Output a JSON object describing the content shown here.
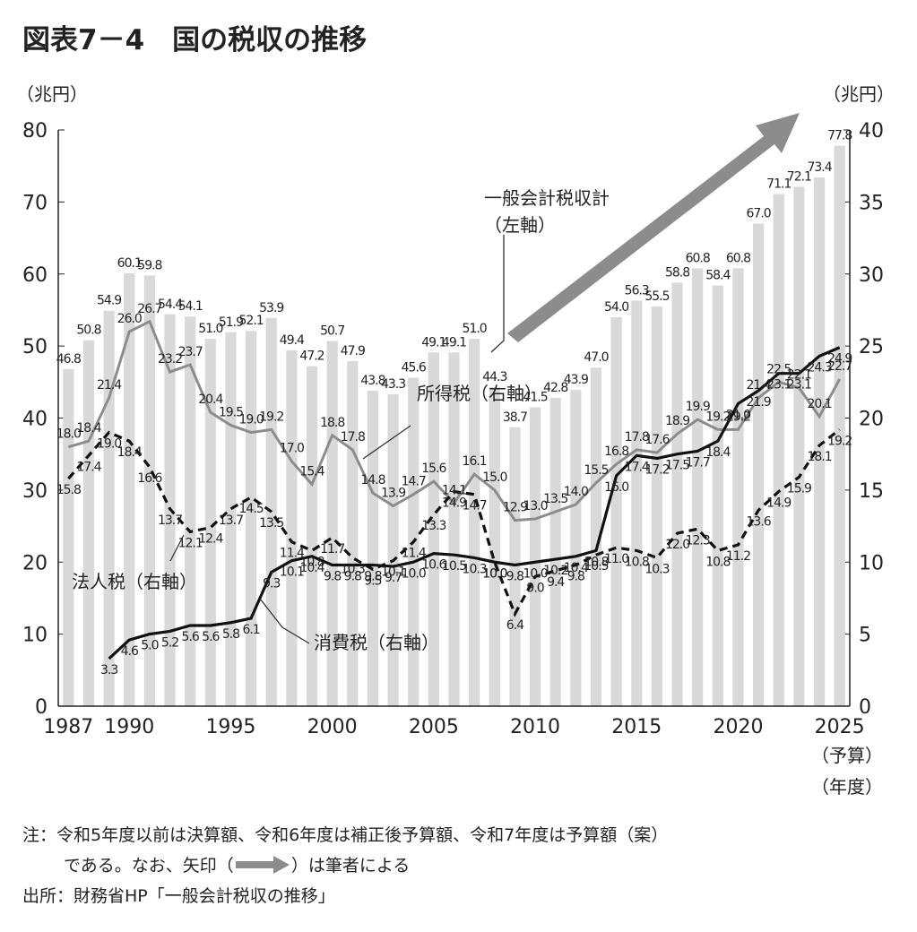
{
  "chart_data": {
    "type": "bar-line",
    "title": "図表7－4　国の税収の推移",
    "y_unit": "（兆円）",
    "y2_unit": "（兆円）",
    "xlabel": "（年度）",
    "x_note": "（予算）",
    "axis_note": "（左軸）",
    "x": [
      1987,
      1988,
      1989,
      1990,
      1991,
      1992,
      1993,
      1994,
      1995,
      1996,
      1997,
      1998,
      1999,
      2000,
      2001,
      2002,
      2003,
      2004,
      2005,
      2006,
      2007,
      2008,
      2009,
      2010,
      2011,
      2012,
      2013,
      2014,
      2015,
      2016,
      2017,
      2018,
      2019,
      2020,
      2021,
      2022,
      2023,
      2024,
      2025
    ],
    "xlim": [
      1986.5,
      2025.5
    ],
    "xticks": [
      1987,
      1990,
      1995,
      2000,
      2005,
      2010,
      2015,
      2020,
      2025
    ],
    "ylim": [
      0,
      80
    ],
    "yticks": [
      0,
      10,
      20,
      30,
      40,
      50,
      60,
      70,
      80
    ],
    "y2lim": [
      0,
      40
    ],
    "y2ticks": [
      0,
      5,
      10,
      15,
      20,
      25,
      30,
      35,
      40
    ],
    "series": [
      {
        "name": "一般会計税収計",
        "kind": "bar",
        "color": "#d9d9d9",
        "values": [
          46.8,
          50.8,
          54.9,
          60.1,
          59.8,
          54.4,
          54.1,
          51.0,
          51.9,
          52.1,
          53.9,
          49.4,
          47.2,
          50.7,
          47.9,
          43.8,
          43.3,
          45.6,
          49.1,
          49.1,
          51.0,
          44.3,
          38.7,
          41.5,
          42.8,
          43.9,
          47.0,
          54.0,
          56.3,
          55.5,
          58.8,
          60.8,
          58.4,
          60.8,
          67.0,
          71.1,
          72.1,
          73.4,
          77.8
        ],
        "value_labels": [
          "46.8",
          "50.8",
          "54.9",
          "60.1",
          "59.8",
          "54.4",
          "54.1",
          "51.0",
          "51.9",
          "52.1",
          "53.9",
          "49.4",
          "47.2",
          "50.7",
          "47.9",
          "43.8",
          "43.3",
          "45.6",
          "49.1",
          "49.1",
          "51.0",
          "44.3",
          "38.7",
          "41.5",
          "42.8",
          "43.9",
          "47.0",
          "54.0",
          "56.3",
          "55.5",
          "58.8",
          "60.8",
          "58.4",
          "60.8",
          "67.0",
          "71.1",
          "72.1",
          "73.4",
          "77.8"
        ]
      },
      {
        "name": "所得税（右軸）",
        "kind": "line",
        "axis": "y2",
        "color": "#8c8c8c",
        "dash": false,
        "values": [
          18.0,
          18.4,
          21.4,
          26.0,
          26.7,
          23.2,
          23.7,
          20.4,
          19.5,
          19.0,
          19.2,
          17.0,
          15.4,
          18.8,
          17.8,
          14.8,
          13.9,
          14.7,
          15.6,
          14.1,
          16.1,
          15.0,
          12.9,
          13.0,
          13.5,
          14.0,
          15.5,
          16.8,
          17.8,
          17.6,
          18.9,
          19.9,
          19.2,
          19.2,
          21.4,
          22.5,
          22.1,
          20.1,
          22.7
        ],
        "value_labels": [
          "18.0",
          "18.4",
          "21.4",
          "26.0",
          "26.7",
          "23.2",
          "23.7",
          "20.4",
          "19.5",
          "19.0",
          "19.2",
          "17.0",
          "15.4",
          "18.8",
          "17.8",
          "14.8",
          "13.9",
          "14.7",
          "15.6",
          "14.1",
          "16.1",
          "15.0",
          "12.9",
          "13.0",
          "13.5",
          "14.0",
          "15.5",
          "16.8",
          "17.8",
          "17.6",
          "18.9",
          "19.9",
          "19.2",
          "19.2",
          "21.4",
          "22.5",
          "22.1",
          "20.1",
          "22.7"
        ]
      },
      {
        "name": "法人税（右軸）",
        "kind": "line",
        "axis": "y2",
        "color": "#111111",
        "dash": true,
        "values": [
          15.8,
          17.4,
          19.0,
          18.4,
          16.6,
          13.7,
          12.1,
          12.4,
          13.7,
          14.5,
          13.5,
          11.4,
          10.8,
          11.7,
          10.3,
          9.5,
          10.1,
          11.4,
          13.3,
          14.9,
          14.7,
          10.0,
          6.4,
          9.0,
          9.4,
          9.8,
          10.5,
          11.0,
          10.8,
          10.3,
          12.0,
          12.3,
          10.8,
          11.2,
          13.6,
          14.9,
          15.9,
          18.1,
          19.2
        ],
        "value_labels": [
          "15.8",
          "17.4",
          "19.0",
          "18.4",
          "16.6",
          "13.7",
          "12.1",
          "12.4",
          "13.7",
          "14.5",
          "13.5",
          "11.4",
          "10.8",
          "11.7",
          "10.3",
          "9.5",
          "10.1",
          "11.4",
          "13.3",
          "14.9",
          "14.7",
          "10.0",
          "6.4",
          "9.0",
          "9.4",
          "9.8",
          "10.5",
          "11.0",
          "10.8",
          "10.3",
          "12.0",
          "12.3",
          "10.8",
          "11.2",
          "13.6",
          "14.9",
          "15.9",
          "18.1",
          "19.2"
        ]
      },
      {
        "name": "消費税（右軸）",
        "kind": "line",
        "axis": "y2",
        "color": "#111111",
        "dash": false,
        "values": [
          null,
          null,
          3.3,
          4.6,
          5.0,
          5.2,
          5.6,
          5.6,
          5.8,
          6.1,
          9.3,
          10.1,
          10.4,
          9.8,
          9.8,
          9.8,
          9.7,
          10.0,
          10.6,
          10.5,
          10.3,
          10.0,
          9.8,
          10.0,
          10.2,
          10.4,
          10.8,
          16.0,
          17.4,
          17.2,
          17.5,
          17.7,
          18.4,
          21.0,
          21.9,
          23.1,
          23.1,
          24.3,
          24.9
        ],
        "value_labels": [
          null,
          null,
          "3.3",
          "4.6",
          "5.0",
          "5.2",
          "5.6",
          "5.6",
          "5.8",
          "6.1",
          "9.3",
          "10.1",
          "10.4",
          "9.8",
          "9.8",
          "9.8",
          "9.7",
          "10.0",
          "10.6",
          "10.5",
          "10.3",
          "10.0",
          "9.8",
          "10.0",
          "10.2",
          "10.4",
          "10.8",
          "16.0",
          "17.4",
          "17.2",
          "17.5",
          "17.7",
          "18.4",
          "21.0",
          "21.9",
          "23.1",
          "23.1",
          "24.3",
          "24.9"
        ]
      }
    ]
  },
  "notes": {
    "line1": "注：令和5年度以前は決算額、令和6年度は補正後予算額、令和7年度は予算額（案）",
    "line2a": "である。なお、矢印（",
    "line2b": "）は筆者による",
    "source": "出所：財務省HP「一般会計税収の推移」"
  }
}
